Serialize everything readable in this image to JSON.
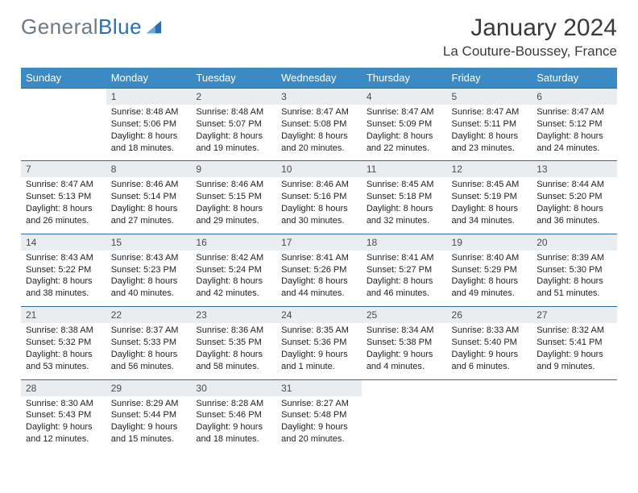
{
  "brand": {
    "part1": "General",
    "part2": "Blue"
  },
  "title": "January 2024",
  "location": "La Couture-Boussey, France",
  "colors": {
    "header_bg": "#3b8ac4",
    "header_text": "#ffffff",
    "daynum_bg": "#e9edf0",
    "row_border": "#2e6da4",
    "brand_gray": "#6b7a86",
    "brand_blue": "#2a6fb0",
    "text": "#222222",
    "page_bg": "#ffffff"
  },
  "typography": {
    "month_title_size": 30,
    "location_size": 17,
    "weekday_size": 13,
    "daynum_size": 12,
    "detail_size": 11
  },
  "weekdays": [
    "Sunday",
    "Monday",
    "Tuesday",
    "Wednesday",
    "Thursday",
    "Friday",
    "Saturday"
  ],
  "weeks": [
    [
      null,
      {
        "n": "1",
        "sr": "Sunrise: 8:48 AM",
        "ss": "Sunset: 5:06 PM",
        "d1": "Daylight: 8 hours",
        "d2": "and 18 minutes."
      },
      {
        "n": "2",
        "sr": "Sunrise: 8:48 AM",
        "ss": "Sunset: 5:07 PM",
        "d1": "Daylight: 8 hours",
        "d2": "and 19 minutes."
      },
      {
        "n": "3",
        "sr": "Sunrise: 8:47 AM",
        "ss": "Sunset: 5:08 PM",
        "d1": "Daylight: 8 hours",
        "d2": "and 20 minutes."
      },
      {
        "n": "4",
        "sr": "Sunrise: 8:47 AM",
        "ss": "Sunset: 5:09 PM",
        "d1": "Daylight: 8 hours",
        "d2": "and 22 minutes."
      },
      {
        "n": "5",
        "sr": "Sunrise: 8:47 AM",
        "ss": "Sunset: 5:11 PM",
        "d1": "Daylight: 8 hours",
        "d2": "and 23 minutes."
      },
      {
        "n": "6",
        "sr": "Sunrise: 8:47 AM",
        "ss": "Sunset: 5:12 PM",
        "d1": "Daylight: 8 hours",
        "d2": "and 24 minutes."
      }
    ],
    [
      {
        "n": "7",
        "sr": "Sunrise: 8:47 AM",
        "ss": "Sunset: 5:13 PM",
        "d1": "Daylight: 8 hours",
        "d2": "and 26 minutes."
      },
      {
        "n": "8",
        "sr": "Sunrise: 8:46 AM",
        "ss": "Sunset: 5:14 PM",
        "d1": "Daylight: 8 hours",
        "d2": "and 27 minutes."
      },
      {
        "n": "9",
        "sr": "Sunrise: 8:46 AM",
        "ss": "Sunset: 5:15 PM",
        "d1": "Daylight: 8 hours",
        "d2": "and 29 minutes."
      },
      {
        "n": "10",
        "sr": "Sunrise: 8:46 AM",
        "ss": "Sunset: 5:16 PM",
        "d1": "Daylight: 8 hours",
        "d2": "and 30 minutes."
      },
      {
        "n": "11",
        "sr": "Sunrise: 8:45 AM",
        "ss": "Sunset: 5:18 PM",
        "d1": "Daylight: 8 hours",
        "d2": "and 32 minutes."
      },
      {
        "n": "12",
        "sr": "Sunrise: 8:45 AM",
        "ss": "Sunset: 5:19 PM",
        "d1": "Daylight: 8 hours",
        "d2": "and 34 minutes."
      },
      {
        "n": "13",
        "sr": "Sunrise: 8:44 AM",
        "ss": "Sunset: 5:20 PM",
        "d1": "Daylight: 8 hours",
        "d2": "and 36 minutes."
      }
    ],
    [
      {
        "n": "14",
        "sr": "Sunrise: 8:43 AM",
        "ss": "Sunset: 5:22 PM",
        "d1": "Daylight: 8 hours",
        "d2": "and 38 minutes."
      },
      {
        "n": "15",
        "sr": "Sunrise: 8:43 AM",
        "ss": "Sunset: 5:23 PM",
        "d1": "Daylight: 8 hours",
        "d2": "and 40 minutes."
      },
      {
        "n": "16",
        "sr": "Sunrise: 8:42 AM",
        "ss": "Sunset: 5:24 PM",
        "d1": "Daylight: 8 hours",
        "d2": "and 42 minutes."
      },
      {
        "n": "17",
        "sr": "Sunrise: 8:41 AM",
        "ss": "Sunset: 5:26 PM",
        "d1": "Daylight: 8 hours",
        "d2": "and 44 minutes."
      },
      {
        "n": "18",
        "sr": "Sunrise: 8:41 AM",
        "ss": "Sunset: 5:27 PM",
        "d1": "Daylight: 8 hours",
        "d2": "and 46 minutes."
      },
      {
        "n": "19",
        "sr": "Sunrise: 8:40 AM",
        "ss": "Sunset: 5:29 PM",
        "d1": "Daylight: 8 hours",
        "d2": "and 49 minutes."
      },
      {
        "n": "20",
        "sr": "Sunrise: 8:39 AM",
        "ss": "Sunset: 5:30 PM",
        "d1": "Daylight: 8 hours",
        "d2": "and 51 minutes."
      }
    ],
    [
      {
        "n": "21",
        "sr": "Sunrise: 8:38 AM",
        "ss": "Sunset: 5:32 PM",
        "d1": "Daylight: 8 hours",
        "d2": "and 53 minutes."
      },
      {
        "n": "22",
        "sr": "Sunrise: 8:37 AM",
        "ss": "Sunset: 5:33 PM",
        "d1": "Daylight: 8 hours",
        "d2": "and 56 minutes."
      },
      {
        "n": "23",
        "sr": "Sunrise: 8:36 AM",
        "ss": "Sunset: 5:35 PM",
        "d1": "Daylight: 8 hours",
        "d2": "and 58 minutes."
      },
      {
        "n": "24",
        "sr": "Sunrise: 8:35 AM",
        "ss": "Sunset: 5:36 PM",
        "d1": "Daylight: 9 hours",
        "d2": "and 1 minute."
      },
      {
        "n": "25",
        "sr": "Sunrise: 8:34 AM",
        "ss": "Sunset: 5:38 PM",
        "d1": "Daylight: 9 hours",
        "d2": "and 4 minutes."
      },
      {
        "n": "26",
        "sr": "Sunrise: 8:33 AM",
        "ss": "Sunset: 5:40 PM",
        "d1": "Daylight: 9 hours",
        "d2": "and 6 minutes."
      },
      {
        "n": "27",
        "sr": "Sunrise: 8:32 AM",
        "ss": "Sunset: 5:41 PM",
        "d1": "Daylight: 9 hours",
        "d2": "and 9 minutes."
      }
    ],
    [
      {
        "n": "28",
        "sr": "Sunrise: 8:30 AM",
        "ss": "Sunset: 5:43 PM",
        "d1": "Daylight: 9 hours",
        "d2": "and 12 minutes."
      },
      {
        "n": "29",
        "sr": "Sunrise: 8:29 AM",
        "ss": "Sunset: 5:44 PM",
        "d1": "Daylight: 9 hours",
        "d2": "and 15 minutes."
      },
      {
        "n": "30",
        "sr": "Sunrise: 8:28 AM",
        "ss": "Sunset: 5:46 PM",
        "d1": "Daylight: 9 hours",
        "d2": "and 18 minutes."
      },
      {
        "n": "31",
        "sr": "Sunrise: 8:27 AM",
        "ss": "Sunset: 5:48 PM",
        "d1": "Daylight: 9 hours",
        "d2": "and 20 minutes."
      },
      null,
      null,
      null
    ]
  ]
}
